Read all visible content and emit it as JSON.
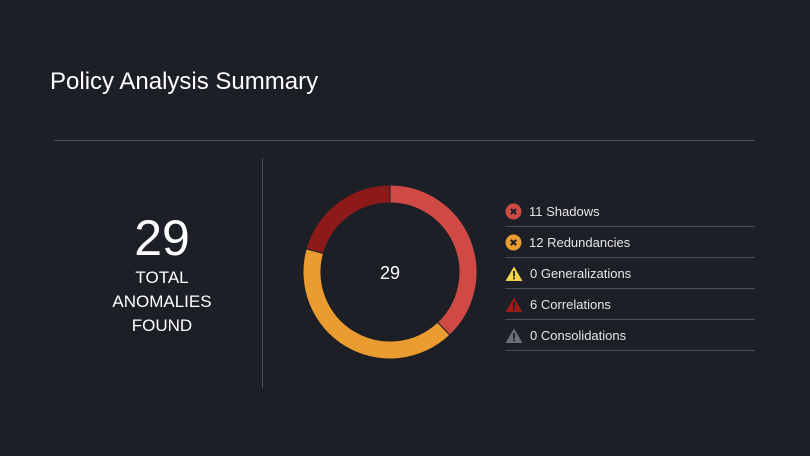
{
  "header": {
    "title": "Policy Analysis Summary"
  },
  "total": {
    "value": "29",
    "label_lines": [
      "TOTAL",
      "ANOMALIES",
      "FOUND"
    ]
  },
  "chart_data": {
    "type": "pie",
    "center_label": "29",
    "categories": [
      "Shadows",
      "Redundancies",
      "Generalizations",
      "Correlations",
      "Consolidations"
    ],
    "values": [
      11,
      12,
      0,
      6,
      0
    ],
    "colors": [
      "#d04a45",
      "#eb9c30",
      "#f2d34e",
      "#8c1a19",
      "#6b6f78"
    ]
  },
  "legend": [
    {
      "text": "11 Shadows",
      "icon": "x-circle-icon",
      "color": "#d04a45"
    },
    {
      "text": "12 Redundancies",
      "icon": "x-circle-icon",
      "color": "#eb9c30"
    },
    {
      "text": "0 Generalizations",
      "icon": "warning-triangle-icon",
      "color": "#f2d34e"
    },
    {
      "text": "6 Correlations",
      "icon": "warning-triangle-icon",
      "color": "#9a1c1a"
    },
    {
      "text": "0 Consolidations",
      "icon": "warning-triangle-icon",
      "color": "#6b6f78"
    }
  ]
}
